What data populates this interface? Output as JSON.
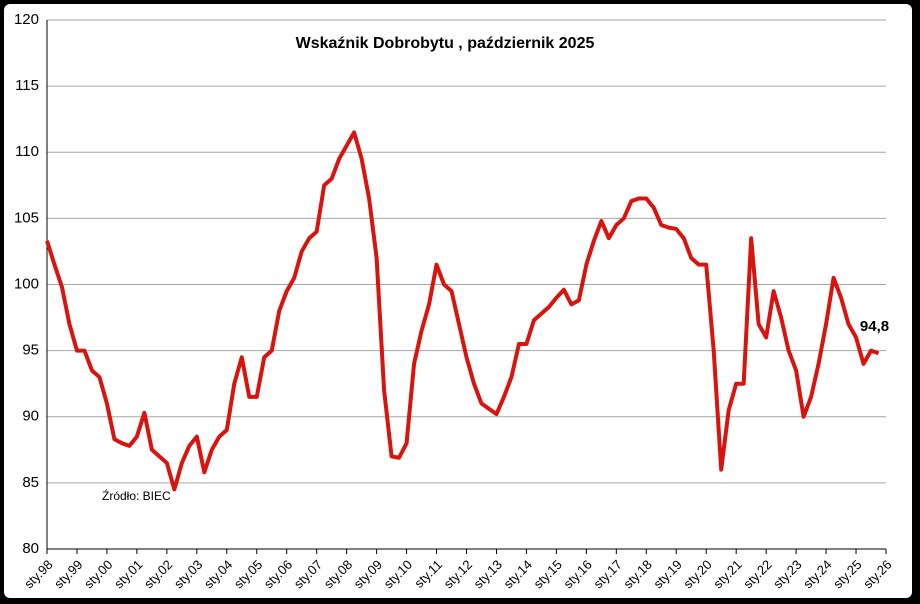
{
  "chart_data": {
    "type": "line",
    "title": "Wskaźnik Dobrobytu , październik 2025",
    "source": "Źródło: BIEC",
    "categories": [
      "sty.98",
      null,
      null,
      null,
      "sty.99",
      null,
      null,
      null,
      "sty.00",
      null,
      null,
      null,
      "sty.01",
      null,
      null,
      null,
      "sty.02",
      null,
      null,
      null,
      "sty.03",
      null,
      null,
      null,
      "sty.04",
      null,
      null,
      null,
      "sty.05",
      null,
      null,
      null,
      "sty.06",
      null,
      null,
      null,
      "sty.07",
      null,
      null,
      null,
      "sty.08",
      null,
      null,
      null,
      "sty.09",
      null,
      null,
      null,
      "sty.10",
      null,
      null,
      null,
      "sty.11",
      null,
      null,
      null,
      "sty.12",
      null,
      null,
      null,
      "sty.13",
      null,
      null,
      null,
      "sty.14",
      null,
      null,
      null,
      "sty.15",
      null,
      null,
      null,
      "sty.16",
      null,
      null,
      null,
      "sty.17",
      null,
      null,
      null,
      "sty.18",
      null,
      null,
      null,
      "sty.19",
      null,
      null,
      null,
      "sty.20",
      null,
      null,
      null,
      "sty.21",
      null,
      null,
      null,
      "sty.22",
      null,
      null,
      null,
      "sty.23",
      null,
      null,
      null,
      "sty.24",
      null,
      null,
      null,
      "sty.25",
      null,
      null,
      null,
      "sty.26"
    ],
    "values": [
      103.3,
      101.5,
      99.8,
      97,
      95,
      95,
      93.5,
      93,
      91,
      88.3,
      88,
      87.8,
      88.5,
      90.3,
      87.5,
      87,
      86.5,
      84.5,
      86.5,
      87.8,
      88.5,
      85.8,
      87.5,
      88.5,
      89,
      92.5,
      94.5,
      91.5,
      91.5,
      94.5,
      95,
      98,
      99.5,
      100.5,
      102.5,
      103.5,
      104,
      107.5,
      108,
      109.5,
      110.5,
      111.5,
      109.5,
      106.5,
      102,
      92,
      87,
      86.9,
      88,
      94,
      96.5,
      98.5,
      101.5,
      100,
      99.5,
      97,
      94.5,
      92.5,
      91,
      90.6,
      90.2,
      91.5,
      93,
      95.5,
      95.5,
      97.3,
      97.8,
      98.3,
      99,
      99.6,
      98.5,
      98.8,
      101.5,
      103.3,
      104.8,
      103.5,
      104.5,
      105,
      106.3,
      106.5,
      106.5,
      105.8,
      104.5,
      104.3,
      104.2,
      103.5,
      102,
      101.5,
      101.5,
      95,
      86,
      90.5,
      92.5,
      92.5,
      103.5,
      97,
      96,
      99.5,
      97.5,
      95,
      93.5,
      90,
      91.5,
      94,
      97,
      100.5,
      99,
      97,
      96,
      94,
      95,
      94.8,
      null
    ],
    "value_labels": [
      null,
      null,
      null,
      null,
      null,
      null,
      null,
      null,
      null,
      null,
      null,
      null,
      null,
      null,
      null,
      null,
      null,
      null,
      null,
      null,
      null,
      null,
      null,
      null,
      null,
      null,
      null,
      null,
      null,
      null,
      null,
      null,
      null,
      null,
      null,
      null,
      null,
      null,
      null,
      null,
      null,
      null,
      null,
      null,
      null,
      null,
      null,
      null,
      null,
      null,
      null,
      null,
      null,
      null,
      null,
      null,
      null,
      null,
      null,
      null,
      null,
      null,
      null,
      null,
      null,
      null,
      null,
      null,
      null,
      null,
      null,
      null,
      null,
      null,
      null,
      null,
      null,
      null,
      null,
      null,
      null,
      null,
      null,
      null,
      null,
      null,
      null,
      null,
      null,
      null,
      null,
      null,
      null,
      null,
      null,
      null,
      null,
      null,
      null,
      null,
      null,
      null,
      null,
      null,
      null,
      null,
      null,
      null,
      null,
      null,
      null,
      "94,8",
      null
    ],
    "color": "#d9140e",
    "ylim": [
      80,
      120
    ],
    "yticks": [
      80,
      85,
      90,
      95,
      100,
      105,
      110,
      115,
      120
    ],
    "grid": true
  }
}
